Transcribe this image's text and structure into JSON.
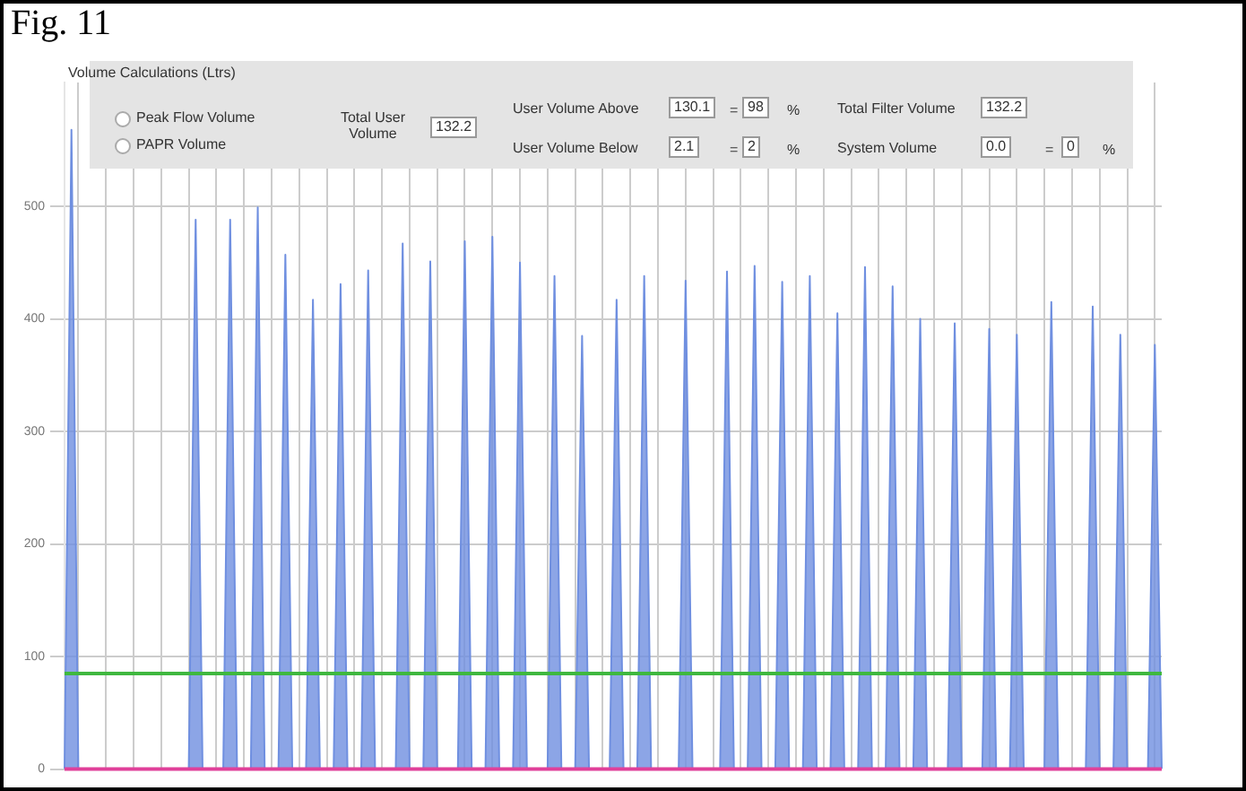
{
  "chart_data": {
    "type": "area",
    "title": "Fig. 11",
    "categories": [
      null,
      null,
      null,
      null,
      null,
      null,
      null,
      null,
      null,
      null,
      null,
      null,
      null,
      null,
      null,
      null,
      null,
      null,
      null,
      null,
      null,
      null,
      null,
      null,
      null,
      null,
      null,
      null,
      null,
      null,
      null,
      null,
      null,
      null,
      null,
      null,
      null,
      null,
      null,
      null,
      null,
      null,
      null,
      null,
      null,
      null,
      null,
      null,
      null,
      null,
      null,
      null,
      null,
      null,
      null,
      null,
      null,
      null,
      null,
      null,
      null,
      null,
      null,
      null,
      null,
      null,
      null,
      null,
      null,
      null,
      null,
      null,
      null,
      null,
      null,
      null,
      null,
      null,
      null,
      null,
      null,
      null,
      null,
      null,
      null,
      null,
      null,
      null,
      null,
      null,
      null,
      null,
      null,
      null,
      null,
      null,
      null,
      null,
      null,
      null,
      null,
      null,
      null,
      null,
      null,
      null,
      null,
      null,
      null,
      null,
      null,
      null,
      null,
      null,
      null,
      null,
      null,
      null,
      null,
      null,
      null,
      null,
      null,
      null,
      null,
      null,
      null,
      null,
      null,
      null,
      null,
      null,
      null,
      null,
      null,
      null,
      null,
      null,
      null,
      null,
      null,
      null,
      null,
      null,
      null,
      null,
      null,
      null,
      null,
      null,
      null,
      null,
      null,
      null,
      null,
      null,
      null,
      null,
      null,
      null
    ],
    "series": [
      {
        "color": "#6f8fe0",
        "values": [
          0,
          568,
          0,
          0,
          0,
          0,
          0,
          null,
          0,
          0,
          0,
          null,
          0,
          0,
          0,
          0,
          null,
          0,
          0,
          488,
          0,
          0,
          0,
          0,
          488,
          0,
          0,
          0,
          499,
          0,
          0,
          0,
          457,
          0,
          0,
          0,
          417,
          0,
          0,
          0,
          431,
          0,
          0,
          0,
          443,
          0,
          0,
          0,
          0,
          467,
          0,
          0,
          0,
          451,
          0,
          0,
          0,
          0,
          469,
          0,
          0,
          0,
          473,
          0,
          0,
          0,
          450,
          0,
          0,
          0,
          0,
          438,
          0,
          0,
          0,
          385,
          0,
          0,
          0,
          0,
          417,
          0,
          0,
          0,
          438,
          0,
          0,
          0,
          0,
          0,
          434,
          0,
          0,
          0,
          0,
          0,
          442,
          0,
          0,
          0,
          447,
          0,
          0,
          0,
          433,
          0,
          0,
          0,
          438,
          0,
          0,
          0,
          405,
          0,
          0,
          0,
          446,
          0,
          0,
          0,
          429,
          0,
          0,
          0,
          400,
          0,
          0,
          0,
          0,
          396,
          0,
          0,
          0,
          0,
          391,
          0,
          0,
          0,
          386,
          0,
          0,
          0,
          0,
          415,
          0,
          0,
          0,
          0,
          0,
          411,
          0,
          0,
          0,
          386,
          0,
          0,
          0,
          0,
          377,
          0
        ]
      }
    ],
    "ylim": [
      0,
      610
    ],
    "yticks": [
      0,
      100,
      200,
      300,
      400,
      500
    ],
    "grid": true,
    "legend": false,
    "ref_lines": [
      {
        "axis": "y",
        "value": 85,
        "color": "#3fb83f"
      },
      {
        "axis": "y",
        "value": 0,
        "color": "#e0409a"
      }
    ],
    "annotations": [
      "Volume Calculations (Ltrs)",
      "Peak Flow Volume",
      "PAPR Volume",
      "Total User Volume",
      "132.2",
      "User Volume Above",
      "130.1",
      "=",
      "98",
      "%",
      "User Volume Below",
      "2.1",
      "=",
      "2",
      "%",
      "Total Filter Volume",
      "132.2",
      "System Volume",
      "0.0",
      "=",
      "0",
      "%"
    ]
  }
}
